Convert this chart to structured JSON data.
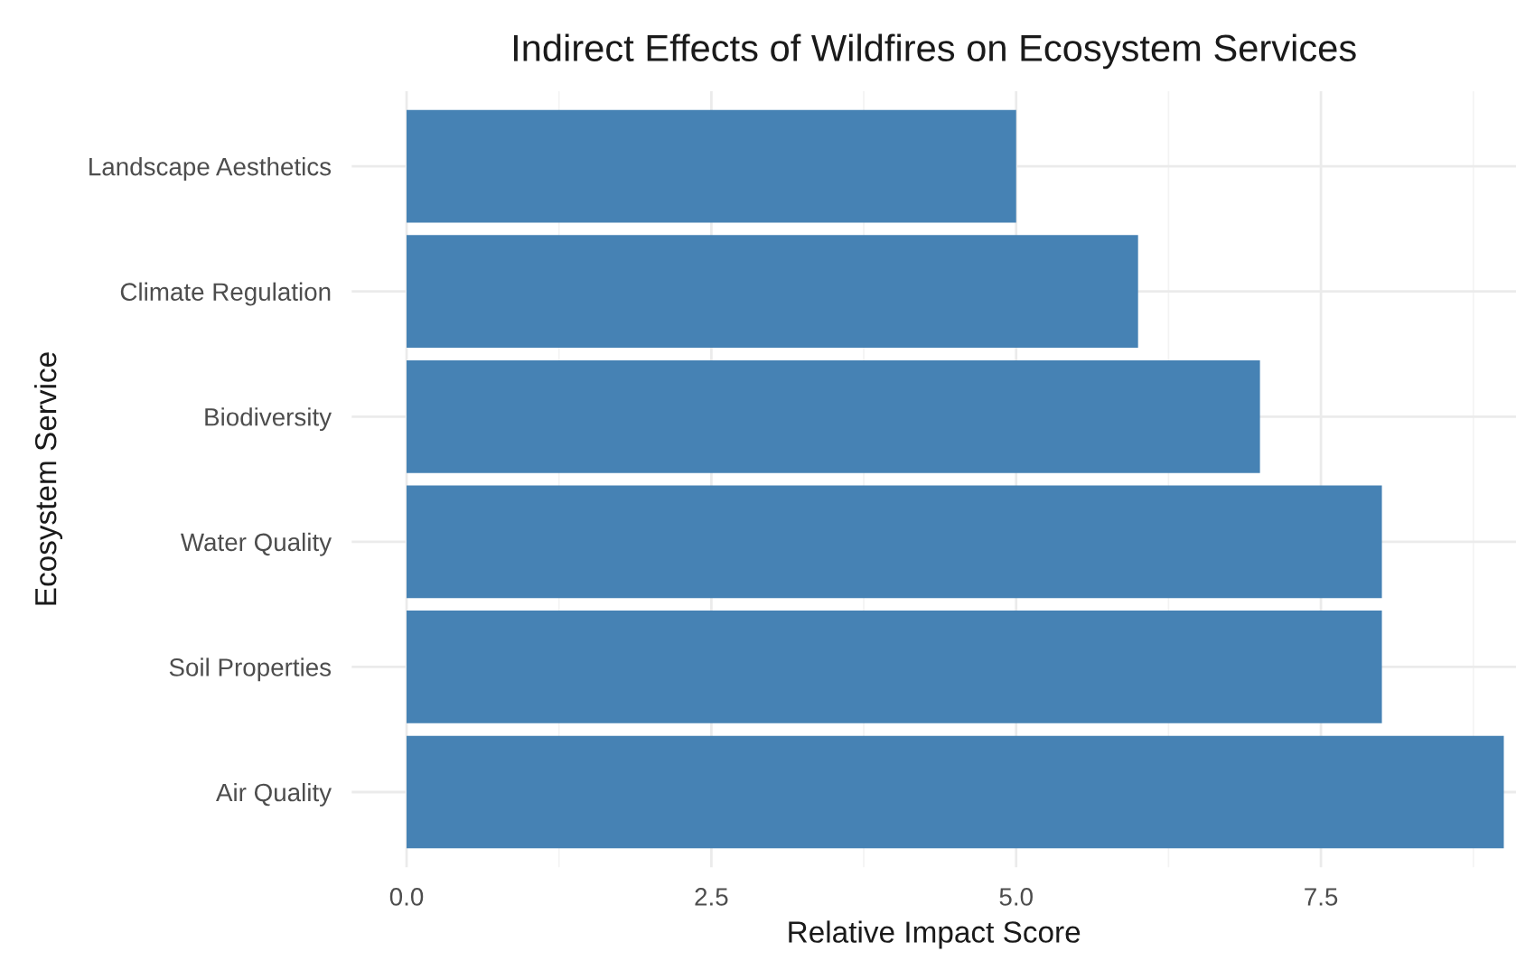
{
  "chart_data": {
    "type": "bar",
    "orientation": "horizontal",
    "title": "Indirect Effects of Wildfires on Ecosystem Services",
    "xlabel": "Relative Impact Score",
    "ylabel": "Ecosystem Service",
    "categories": [
      "Landscape Aesthetics",
      "Climate Regulation",
      "Biodiversity",
      "Water Quality",
      "Soil Properties",
      "Air Quality"
    ],
    "values": [
      5,
      6,
      7,
      8,
      8,
      9
    ],
    "color": "#4682b4",
    "xlim": [
      -0.45,
      9.1
    ],
    "xticks": [
      {
        "value": 0,
        "label": "0.0"
      },
      {
        "value": 2.5,
        "label": "2.5"
      },
      {
        "value": 5,
        "label": "5.0"
      },
      {
        "value": 7.5,
        "label": "7.5"
      }
    ],
    "grid": true,
    "legend": false
  }
}
